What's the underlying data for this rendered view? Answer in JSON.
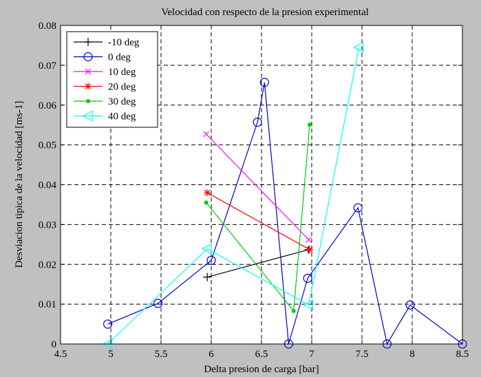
{
  "chart_data": {
    "type": "line",
    "title": "Velocidad con respecto de la presion experimental",
    "xlabel": "Delta presion de carga [bar]",
    "ylabel": "Desviacion tipica de la velocidad [ms-1]",
    "xlim": [
      4.5,
      8.5
    ],
    "ylim": [
      0,
      0.08
    ],
    "xticks": [
      4.5,
      5,
      5.5,
      6,
      6.5,
      7,
      7.5,
      8,
      8.5
    ],
    "yticks": [
      0,
      0.01,
      0.02,
      0.03,
      0.04,
      0.05,
      0.06,
      0.07,
      0.08
    ],
    "xtick_labels": [
      "4.5",
      "5",
      "5.5",
      "6",
      "6.5",
      "7",
      "7.5",
      "8",
      "8.5"
    ],
    "ytick_labels": [
      "0",
      "0.01",
      "0.02",
      "0.03",
      "0.04",
      "0.05",
      "0.06",
      "0.07",
      "0.08"
    ],
    "grid": true,
    "legend_position": "top-left",
    "series": [
      {
        "name": "-10 deg",
        "color": "#000000",
        "marker": "plus",
        "x": [
          5.96,
          6.97
        ],
        "y": [
          0.0168,
          0.0237
        ]
      },
      {
        "name": "0 deg",
        "color": "#0000cc",
        "marker": "circle",
        "x": [
          4.97,
          5.47,
          6.0,
          6.46,
          6.53,
          6.77,
          6.96,
          7.46,
          7.75,
          7.98,
          8.5
        ],
        "y": [
          0.005,
          0.0102,
          0.021,
          0.0557,
          0.0657,
          0.0,
          0.0165,
          0.0342,
          0.0,
          0.0098,
          0.0
        ]
      },
      {
        "name": "10 deg",
        "color": "#ff00ff",
        "marker": "x",
        "x": [
          5.95,
          6.97
        ],
        "y": [
          0.0527,
          0.0262
        ]
      },
      {
        "name": "20 deg",
        "color": "#ff0000",
        "marker": "star",
        "x": [
          5.96,
          6.98
        ],
        "y": [
          0.038,
          0.0237
        ]
      },
      {
        "name": "30 deg",
        "color": "#00cc00",
        "marker": "dot",
        "x": [
          5.95,
          6.82,
          6.98
        ],
        "y": [
          0.0355,
          0.0083,
          0.0551
        ]
      },
      {
        "name": "40 deg",
        "color": "#00ffff",
        "marker": "triangle-left",
        "x": [
          4.97,
          5.96,
          6.97,
          7.47
        ],
        "y": [
          0.0,
          0.0239,
          0.0098,
          0.0745
        ]
      }
    ]
  }
}
